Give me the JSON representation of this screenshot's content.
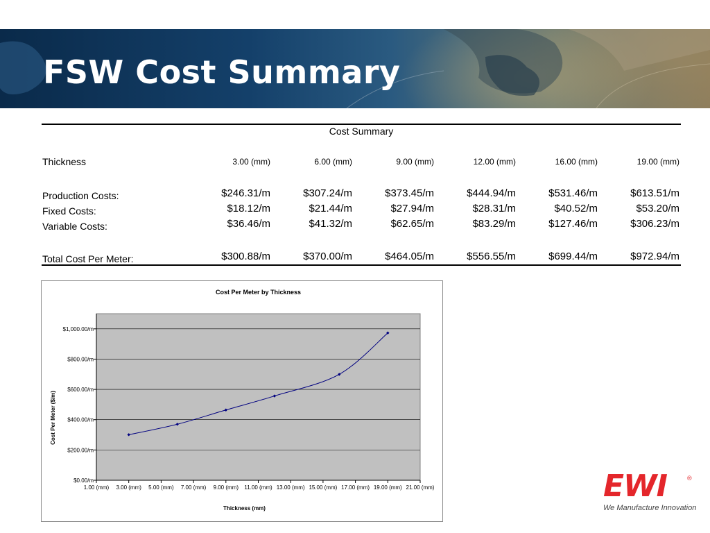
{
  "slide": {
    "title": "FSW Cost Summary"
  },
  "summary_table": {
    "caption": "Cost Summary",
    "header_label": "Thickness",
    "columns": [
      "3.00 (mm)",
      "6.00 (mm)",
      "9.00 (mm)",
      "12.00 (mm)",
      "16.00 (mm)",
      "19.00 (mm)"
    ],
    "rows": [
      {
        "label": "Production Costs:",
        "values": [
          "$246.31/m",
          "$307.24/m",
          "$373.45/m",
          "$444.94/m",
          "$531.46/m",
          "$613.51/m"
        ]
      },
      {
        "label": "Fixed Costs:",
        "values": [
          "$18.12/m",
          "$21.44/m",
          "$27.94/m",
          "$28.31/m",
          "$40.52/m",
          "$53.20/m"
        ]
      },
      {
        "label": "Variable Costs:",
        "values": [
          "$36.46/m",
          "$41.32/m",
          "$62.65/m",
          "$83.29/m",
          "$127.46/m",
          "$306.23/m"
        ]
      }
    ],
    "total": {
      "label": "Total Cost Per Meter:",
      "values": [
        "$300.88/m",
        "$370.00/m",
        "$464.05/m",
        "$556.55/m",
        "$699.44/m",
        "$972.94/m"
      ]
    }
  },
  "chart_data": {
    "type": "line",
    "title": "Cost Per Meter by Thickness",
    "xlabel": "Thickness (mm)",
    "ylabel": "Cost Per Meter ($/m)",
    "xlim": [
      1,
      21
    ],
    "ylim": [
      0,
      1100
    ],
    "x_ticks": [
      1,
      3,
      5,
      7,
      9,
      11,
      13,
      15,
      17,
      19,
      21
    ],
    "x_tick_labels": [
      "1.00 (mm)",
      "3.00 (mm)",
      "5.00 (mm)",
      "7.00 (mm)",
      "9.00 (mm)",
      "11.00 (mm)",
      "13.00 (mm)",
      "15.00 (mm)",
      "17.00 (mm)",
      "19.00 (mm)",
      "21.00 (mm)"
    ],
    "y_ticks": [
      0,
      200,
      400,
      600,
      800,
      1000
    ],
    "y_tick_labels": [
      "$0.00/m",
      "$200.00/m",
      "$400.00/m",
      "$600.00/m",
      "$800.00/m",
      "$1,000.00/m"
    ],
    "grid": true,
    "plot_background": "#c0c0c0",
    "series": [
      {
        "color": "#000080",
        "x": [
          3,
          6,
          9,
          12,
          16,
          19
        ],
        "y": [
          300.88,
          370.0,
          464.05,
          556.55,
          699.44,
          972.94
        ]
      }
    ]
  },
  "logo": {
    "text": "EWI",
    "registered_mark": "®",
    "tagline": "We Manufacture Innovation",
    "color": "#e4262b"
  }
}
